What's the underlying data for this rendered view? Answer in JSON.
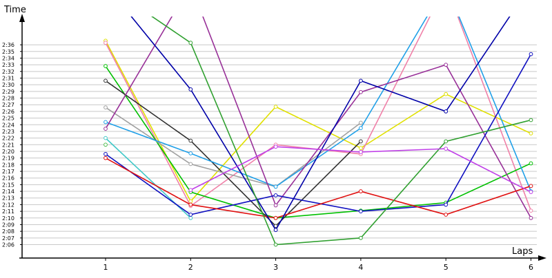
{
  "chart_data": {
    "type": "line",
    "title": "",
    "xlabel": "Laps",
    "ylabel": "Time",
    "x": [
      1,
      2,
      3,
      4,
      5,
      6
    ],
    "x_ticks": [
      "1",
      "2",
      "3",
      "4",
      "5",
      "6"
    ],
    "ylim": [
      "2:05",
      "2:37"
    ],
    "y_ticks": [
      "2:06",
      "2:07",
      "2:08",
      "2:09",
      "2:10",
      "2:11",
      "2:12",
      "2:13",
      "2:14",
      "2:15",
      "2:16",
      "2:17",
      "2:18",
      "2:19",
      "2:20",
      "2:21",
      "2:22",
      "2:23",
      "2:24",
      "2:25",
      "2:26",
      "2:27",
      "2:28",
      "2:29",
      "2:30",
      "2:31",
      "2:32",
      "2:33",
      "2:34",
      "2:35",
      "2:36"
    ],
    "grid": true,
    "legend": "none",
    "series": [
      {
        "color": "#e0e000",
        "values": [
          "2:36.6",
          "2:12.5",
          "2:26.7",
          "2:20.5",
          "2:28.6",
          "2:22.7"
        ]
      },
      {
        "color": "#f080a8",
        "values": [
          "2:36.3",
          "2:11.8",
          "2:21.0",
          "2:19.6",
          "2:45.0",
          "2:11.1"
        ]
      },
      {
        "color": "#00c000",
        "values": [
          "2:32.8",
          "2:13.9",
          "2:10.0",
          "2:11.1",
          "2:12.3",
          "2:18.2"
        ]
      },
      {
        "color": "#303030",
        "values": [
          "2:30.6",
          "2:21.6",
          "2:08.8",
          "2:21.5",
          null,
          null
        ]
      },
      {
        "color": "#a0a0a0",
        "values": [
          "2:26.6",
          "2:18.1",
          "2:14.7",
          "2:24.3",
          null,
          null
        ]
      },
      {
        "color": "#20a0e8",
        "values": [
          "2:24.4",
          "2:19.7",
          "2:14.7",
          "2:23.5",
          "2:45.0",
          "2:14.0"
        ]
      },
      {
        "color": "#983098",
        "values": [
          "2:23.4",
          "2:45.0",
          "2:11.9",
          "2:28.9",
          "2:33.0",
          "2:10.0"
        ]
      },
      {
        "color": "#40c8c8",
        "values": [
          "2:22.0",
          "2:10.0",
          null,
          null,
          null,
          null
        ]
      },
      {
        "color": "#50c050",
        "values": [
          "2:21.0",
          null,
          null,
          null,
          null,
          null
        ]
      },
      {
        "color": "#1010c0",
        "values": [
          "2:19.6",
          "2:10.5",
          "2:13.4",
          "2:11.0",
          "2:12.0",
          "2:34.6"
        ]
      },
      {
        "color": "#e01010",
        "values": [
          "2:19.0",
          "2:12.0",
          "2:10.0",
          "2:14.0",
          "2:10.5",
          "2:14.8"
        ]
      },
      {
        "color": "#0000a8",
        "values": [
          "2:45.0",
          "2:29.3",
          "2:08.2",
          "2:30.6",
          "2:26.0",
          "2:45.0"
        ]
      },
      {
        "color": "#30a030",
        "values": [
          "2:45.0",
          "2:36.3",
          "2:06.0",
          "2:07.0",
          "2:21.5",
          "2:24.7"
        ]
      },
      {
        "color": "#c040e8",
        "values": [
          null,
          "2:14.2",
          "2:20.7",
          "2:19.9",
          "2:20.4",
          "2:13.9"
        ]
      }
    ]
  }
}
